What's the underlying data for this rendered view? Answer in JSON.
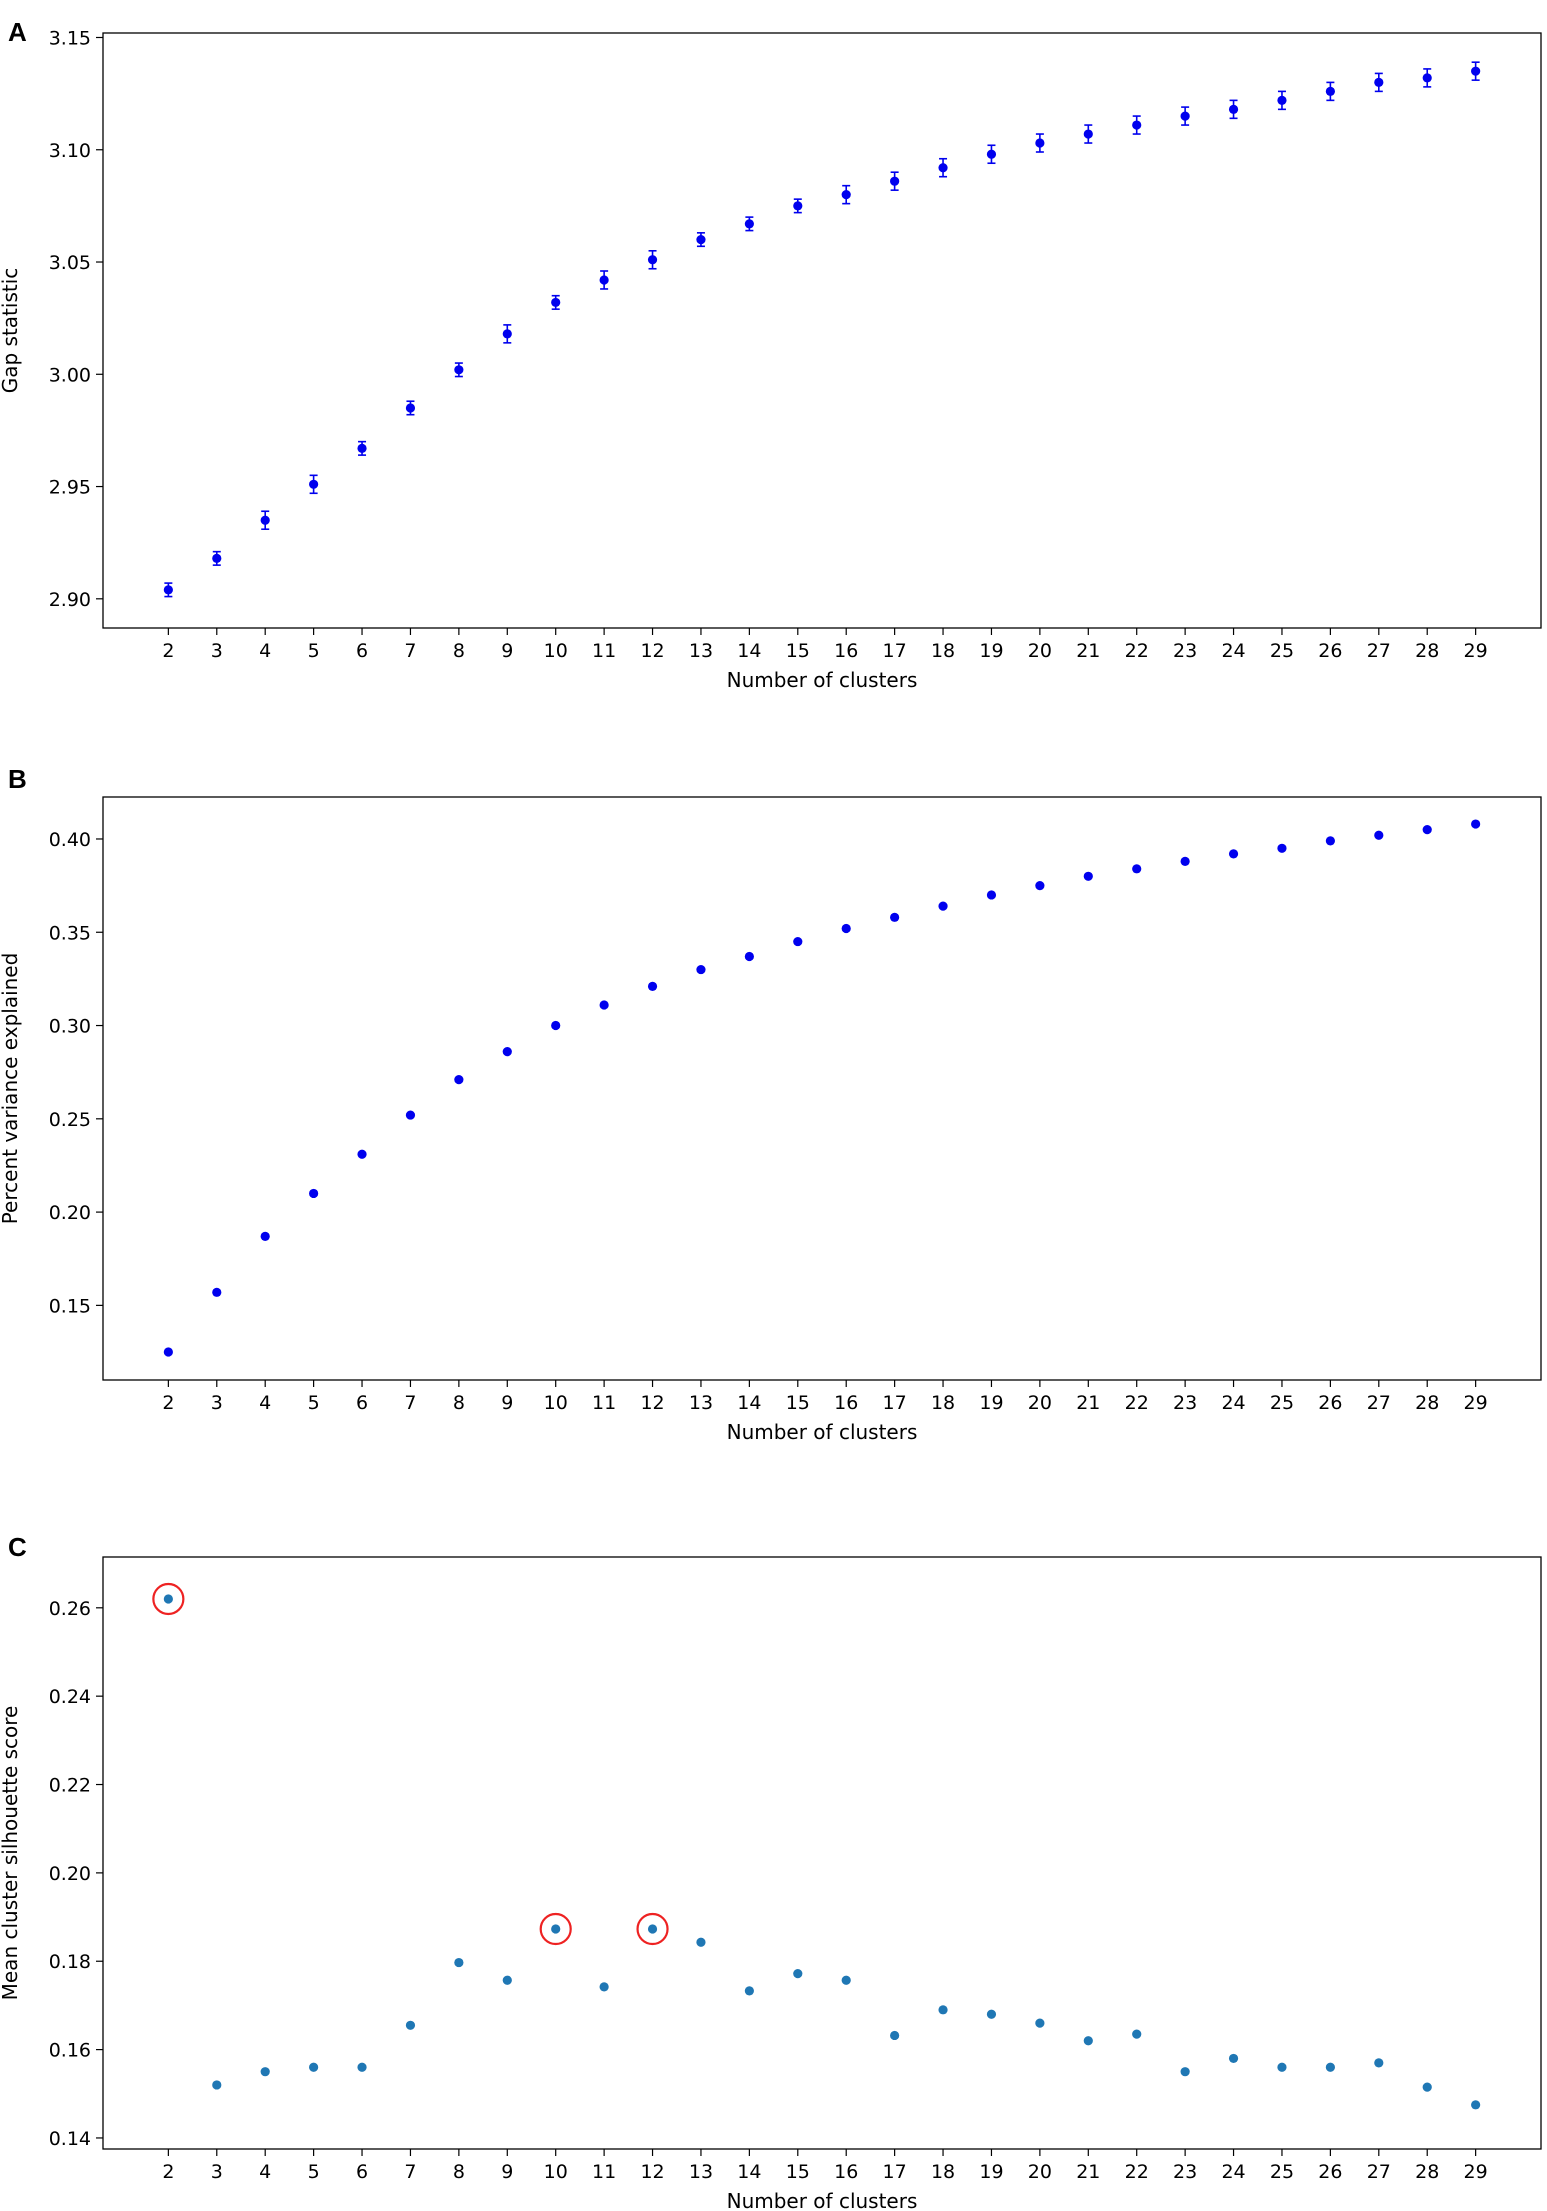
{
  "chart_data": [
    {
      "panel_label": "A",
      "type": "scatter",
      "error_bars": true,
      "marker_color": "#0000ee",
      "xlabel": "Number of clusters",
      "ylabel": "Gap statistic",
      "x": [
        2,
        3,
        4,
        5,
        6,
        7,
        8,
        9,
        10,
        11,
        12,
        13,
        14,
        15,
        16,
        17,
        18,
        19,
        20,
        21,
        22,
        23,
        24,
        25,
        26,
        27,
        28,
        29
      ],
      "x_tick_labels": [
        "2",
        "3",
        "4",
        "5",
        "6",
        "7",
        "8",
        "9",
        "10",
        "11",
        "12",
        "13",
        "14",
        "15",
        "16",
        "17",
        "18",
        "19",
        "20",
        "21",
        "22",
        "23",
        "24",
        "25",
        "26",
        "27",
        "28",
        "29"
      ],
      "y": [
        2.904,
        2.918,
        2.935,
        2.951,
        2.967,
        2.985,
        3.002,
        3.018,
        3.032,
        3.042,
        3.051,
        3.06,
        3.067,
        3.075,
        3.08,
        3.086,
        3.092,
        3.098,
        3.103,
        3.107,
        3.111,
        3.115,
        3.118,
        3.122,
        3.126,
        3.13,
        3.132,
        3.135
      ],
      "y_err": [
        0.003,
        0.003,
        0.004,
        0.004,
        0.003,
        0.003,
        0.003,
        0.004,
        0.003,
        0.004,
        0.004,
        0.003,
        0.003,
        0.003,
        0.004,
        0.004,
        0.004,
        0.004,
        0.004,
        0.004,
        0.004,
        0.004,
        0.004,
        0.004,
        0.004,
        0.004,
        0.004,
        0.004
      ],
      "xlim": [
        0.65,
        30.35
      ],
      "ylim": [
        2.887,
        3.152
      ],
      "y_ticks": [
        2.9,
        2.95,
        3.0,
        3.05,
        3.1,
        3.15
      ],
      "y_tick_labels": [
        "2.90",
        "2.95",
        "3.00",
        "3.05",
        "3.10",
        "3.15"
      ],
      "grid": false
    },
    {
      "panel_label": "B",
      "type": "scatter",
      "marker_color": "#0000ee",
      "xlabel": "Number of clusters",
      "ylabel": "Percent variance explained",
      "x": [
        2,
        3,
        4,
        5,
        6,
        7,
        8,
        9,
        10,
        11,
        12,
        13,
        14,
        15,
        16,
        17,
        18,
        19,
        20,
        21,
        22,
        23,
        24,
        25,
        26,
        27,
        28,
        29
      ],
      "x_tick_labels": [
        "2",
        "3",
        "4",
        "5",
        "6",
        "7",
        "8",
        "9",
        "10",
        "11",
        "12",
        "13",
        "14",
        "15",
        "16",
        "17",
        "18",
        "19",
        "20",
        "21",
        "22",
        "23",
        "24",
        "25",
        "26",
        "27",
        "28",
        "29"
      ],
      "y": [
        0.125,
        0.157,
        0.187,
        0.21,
        0.231,
        0.252,
        0.271,
        0.286,
        0.3,
        0.311,
        0.321,
        0.33,
        0.337,
        0.345,
        0.352,
        0.358,
        0.364,
        0.37,
        0.375,
        0.38,
        0.384,
        0.388,
        0.392,
        0.395,
        0.399,
        0.402,
        0.405,
        0.408
      ],
      "xlim": [
        0.65,
        30.35
      ],
      "ylim": [
        0.11,
        0.4225
      ],
      "y_ticks": [
        0.15,
        0.2,
        0.25,
        0.3,
        0.35,
        0.4
      ],
      "y_tick_labels": [
        "0.15",
        "0.20",
        "0.25",
        "0.30",
        "0.35",
        "0.40"
      ],
      "grid": false
    },
    {
      "panel_label": "C",
      "type": "scatter",
      "marker_color": "#1f77b4",
      "highlight_color": "#ee2222",
      "highlighted_x": [
        2,
        10,
        12
      ],
      "xlabel": "Number of clusters",
      "ylabel": "Mean cluster silhouette score",
      "x": [
        2,
        3,
        4,
        5,
        6,
        7,
        8,
        9,
        10,
        11,
        12,
        13,
        14,
        15,
        16,
        17,
        18,
        19,
        20,
        21,
        22,
        23,
        24,
        25,
        26,
        27,
        28,
        29
      ],
      "x_tick_labels": [
        "2",
        "3",
        "4",
        "5",
        "6",
        "7",
        "8",
        "9",
        "10",
        "11",
        "12",
        "13",
        "14",
        "15",
        "16",
        "17",
        "18",
        "19",
        "20",
        "21",
        "22",
        "23",
        "24",
        "25",
        "26",
        "27",
        "28",
        "29"
      ],
      "y": [
        0.262,
        0.152,
        0.155,
        0.156,
        0.156,
        0.1655,
        0.1797,
        0.1757,
        0.1873,
        0.1742,
        0.1873,
        0.1843,
        0.1733,
        0.1772,
        0.1757,
        0.1632,
        0.169,
        0.168,
        0.166,
        0.162,
        0.1635,
        0.155,
        0.158,
        0.156,
        0.156,
        0.157,
        0.1515,
        0.1475
      ],
      "xlim": [
        0.65,
        30.35
      ],
      "ylim": [
        0.1375,
        0.2715
      ],
      "y_ticks": [
        0.14,
        0.16,
        0.18,
        0.2,
        0.22,
        0.24,
        0.26
      ],
      "y_tick_labels": [
        "0.14",
        "0.16",
        "0.18",
        "0.20",
        "0.22",
        "0.24",
        "0.26"
      ],
      "grid": false
    }
  ]
}
